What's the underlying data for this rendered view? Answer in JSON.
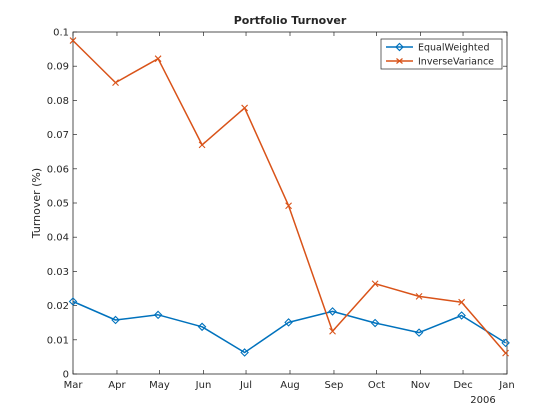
{
  "chart_data": {
    "type": "line",
    "title": "Portfolio Turnover",
    "xlabel": "",
    "ylabel": "Turnover (%)",
    "year_label": "2006",
    "x_ticks": [
      "Mar",
      "Apr",
      "May",
      "Jun",
      "Jul",
      "Aug",
      "Sep",
      "Oct",
      "Nov",
      "Dec",
      "Jan"
    ],
    "y_ticks": [
      "0",
      "0.01",
      "0.02",
      "0.03",
      "0.04",
      "0.05",
      "0.06",
      "0.07",
      "0.08",
      "0.09",
      "0.1"
    ],
    "ylim": [
      0,
      0.1
    ],
    "x_dates": [
      "2006-03-01",
      "2006-03-31",
      "2006-04-30",
      "2006-05-31",
      "2006-06-30",
      "2006-07-31",
      "2006-08-31",
      "2006-09-30",
      "2006-10-31",
      "2006-11-30",
      "2006-12-31"
    ],
    "series": [
      {
        "name": "EqualWeighted",
        "color": "#0072bd",
        "marker": "diamond",
        "values": [
          0.0212,
          0.0158,
          0.0173,
          0.0138,
          0.0063,
          0.0151,
          0.0183,
          0.0149,
          0.0121,
          0.0171,
          0.0091
        ]
      },
      {
        "name": "InverseVariance",
        "color": "#d95319",
        "marker": "x",
        "values": [
          0.0975,
          0.0852,
          0.0922,
          0.067,
          0.0778,
          0.0492,
          0.0125,
          0.0264,
          0.0227,
          0.021,
          0.0061
        ]
      }
    ],
    "grid": false,
    "legend_position": "top-right"
  }
}
